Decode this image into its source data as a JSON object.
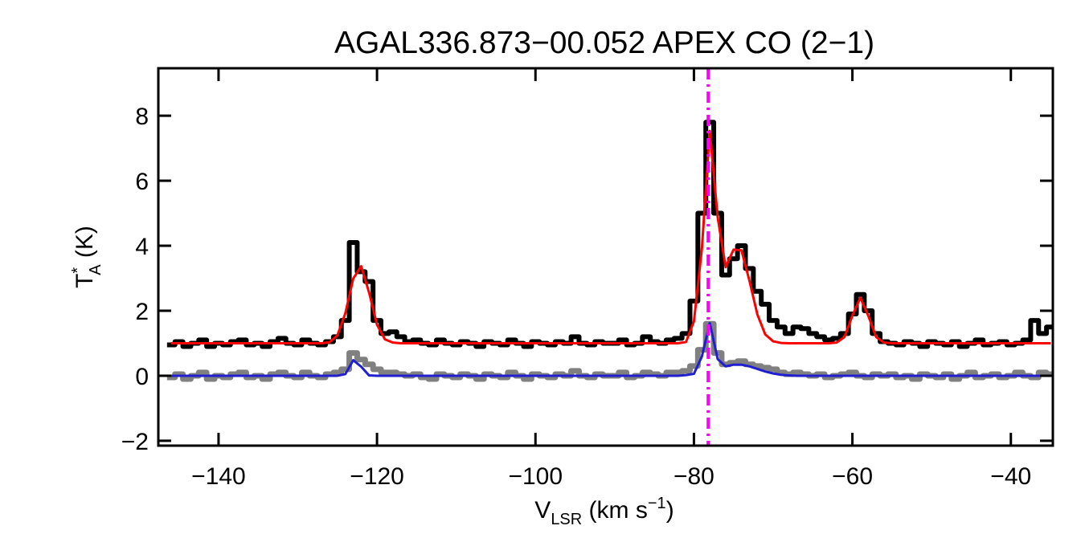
{
  "chart_data": {
    "type": "line",
    "title": "AGAL336.873−00.052  APEX CO (2−1)",
    "x_label": {
      "main": "V",
      "sub": "LSR",
      "unit": " (km s",
      "sup": "−1",
      "close": ")"
    },
    "y_label": {
      "main": "T",
      "sup": "*",
      "sub": "A",
      "unit": " (K)"
    },
    "x": [
      -146,
      -145,
      -144,
      -143,
      -142,
      -141,
      -140,
      -139,
      -138,
      -137,
      -136,
      -135,
      -134,
      -133,
      -132,
      -131,
      -130,
      -129,
      -128,
      -127,
      -126,
      -125,
      -124,
      -123,
      -122,
      -121,
      -120,
      -119,
      -118,
      -117,
      -116,
      -115,
      -114,
      -113,
      -112,
      -111,
      -110,
      -109,
      -108,
      -107,
      -106,
      -105,
      -104,
      -103,
      -102,
      -101,
      -100,
      -99,
      -98,
      -97,
      -96,
      -95,
      -94,
      -93,
      -92,
      -91,
      -90,
      -89,
      -88,
      -87,
      -86,
      -85,
      -84,
      -83,
      -82,
      -81,
      -80,
      -79,
      -78,
      -77,
      -76,
      -75,
      -74,
      -73,
      -72,
      -71,
      -70,
      -69,
      -68,
      -67,
      -66,
      -65,
      -64,
      -63,
      -62,
      -61,
      -60,
      -59,
      -58,
      -57,
      -56,
      -55,
      -54,
      -53,
      -52,
      -51,
      -50,
      -49,
      -48,
      -47,
      -46,
      -45,
      -44,
      -43,
      -42,
      -41,
      -40,
      -39,
      -38,
      -37,
      -36,
      -35
    ],
    "series": [
      {
        "color": "#808080",
        "style": "step",
        "width": 7,
        "values": [
          -0.05,
          0.05,
          -0.1,
          0.0,
          0.1,
          -0.1,
          0.0,
          -0.05,
          0.05,
          0.1,
          -0.05,
          0.0,
          -0.1,
          0.05,
          0.1,
          0.0,
          -0.05,
          0.1,
          0.0,
          -0.05,
          0.05,
          0.1,
          0.2,
          0.7,
          0.5,
          0.35,
          0.2,
          0.1,
          0.1,
          0.05,
          0.0,
          0.05,
          -0.05,
          -0.1,
          0.05,
          0.0,
          -0.05,
          0.05,
          0.0,
          -0.1,
          0.05,
          0.0,
          -0.05,
          0.1,
          0.0,
          -0.1,
          0.05,
          0.0,
          -0.05,
          0.05,
          0.0,
          0.15,
          0.0,
          -0.05,
          0.05,
          0.0,
          0.0,
          0.1,
          -0.05,
          0.0,
          0.1,
          0.05,
          0.0,
          0.1,
          0.1,
          0.15,
          0.3,
          0.8,
          1.6,
          0.7,
          0.35,
          0.4,
          0.45,
          0.35,
          0.3,
          0.25,
          0.2,
          0.1,
          0.05,
          0.1,
          0.05,
          0.0,
          0.05,
          -0.05,
          0.0,
          0.05,
          0.1,
          0.0,
          -0.05,
          0.05,
          0.0,
          0.05,
          -0.05,
          0.0,
          -0.1,
          0.05,
          0.0,
          -0.05,
          0.05,
          -0.1,
          0.0,
          0.1,
          -0.05,
          0.0,
          0.05,
          -0.05,
          0.0,
          0.1,
          0.0,
          -0.05,
          0.1,
          0.05
        ]
      },
      {
        "color": "#000000",
        "style": "step",
        "width": 6,
        "values": [
          0.95,
          1.05,
          0.9,
          1.0,
          1.1,
          0.9,
          1.0,
          0.95,
          1.05,
          1.1,
          0.95,
          1.0,
          0.9,
          1.05,
          1.15,
          1.0,
          0.95,
          1.1,
          1.0,
          0.95,
          1.05,
          1.2,
          1.7,
          4.1,
          3.2,
          2.9,
          1.7,
          1.3,
          1.35,
          1.2,
          1.05,
          1.1,
          1.0,
          0.95,
          1.1,
          1.0,
          0.95,
          1.05,
          1.0,
          0.9,
          1.05,
          1.0,
          0.95,
          1.1,
          1.0,
          0.9,
          1.05,
          1.0,
          0.95,
          1.05,
          1.0,
          1.2,
          1.0,
          0.95,
          1.05,
          1.0,
          1.0,
          1.1,
          0.95,
          1.0,
          1.2,
          1.05,
          1.0,
          1.1,
          1.15,
          1.3,
          2.3,
          5.0,
          7.8,
          5.0,
          3.1,
          3.6,
          4.0,
          3.3,
          2.6,
          2.2,
          1.7,
          1.5,
          1.3,
          1.5,
          1.45,
          1.3,
          1.2,
          1.1,
          1.15,
          1.3,
          1.9,
          2.5,
          2.0,
          1.3,
          1.05,
          1.0,
          0.95,
          1.05,
          1.0,
          0.9,
          1.05,
          1.0,
          0.95,
          1.05,
          0.9,
          1.0,
          1.1,
          0.95,
          1.0,
          1.05,
          0.95,
          1.0,
          1.1,
          1.7,
          1.3,
          1.5
        ]
      },
      {
        "color": "#ff0000",
        "style": "smooth",
        "width": 3,
        "values": [
          1.0,
          1.0,
          1.0,
          1.0,
          1.0,
          1.0,
          1.0,
          1.0,
          1.0,
          1.0,
          1.0,
          1.0,
          1.0,
          1.0,
          1.0,
          1.0,
          1.0,
          1.0,
          1.0,
          1.0,
          1.03,
          1.24,
          1.92,
          2.99,
          3.37,
          2.56,
          1.57,
          1.12,
          1.02,
          1.0,
          1.0,
          1.0,
          1.0,
          1.0,
          1.0,
          1.0,
          1.0,
          1.0,
          1.0,
          1.0,
          1.0,
          1.0,
          1.0,
          1.0,
          1.0,
          1.0,
          1.0,
          1.0,
          1.0,
          1.0,
          1.0,
          1.0,
          1.0,
          1.0,
          1.0,
          1.0,
          1.0,
          1.0,
          1.0,
          1.0,
          1.0,
          1.0,
          1.0,
          1.0,
          1.0,
          1.04,
          1.67,
          3.9,
          7.53,
          4.87,
          3.34,
          3.88,
          3.86,
          2.93,
          1.89,
          1.27,
          1.06,
          1.01,
          1.0,
          1.0,
          1.0,
          1.0,
          1.0,
          1.0,
          1.02,
          1.19,
          1.85,
          2.4,
          1.85,
          1.19,
          1.02,
          1.0,
          1.0,
          1.0,
          1.0,
          1.0,
          1.0,
          1.0,
          1.0,
          1.0,
          1.0,
          1.0,
          1.0,
          1.0,
          1.0,
          1.0,
          1.0,
          1.0,
          1.0,
          1.0,
          1.0,
          1.0
        ]
      },
      {
        "color": "#1f1fd0",
        "style": "smooth",
        "width": 3,
        "values": [
          0,
          0,
          0,
          0,
          0,
          0,
          0,
          0,
          0,
          0,
          0,
          0,
          0,
          0,
          0,
          0,
          0,
          0,
          0,
          0,
          0,
          0,
          0.05,
          0.48,
          0.28,
          0.01,
          0,
          0,
          0,
          0,
          0,
          0,
          0,
          0,
          0,
          0,
          0,
          0,
          0,
          0,
          0,
          0,
          0,
          0,
          0,
          0,
          0,
          0,
          0,
          0,
          0,
          0,
          0,
          0,
          0,
          0,
          0,
          0,
          0,
          0,
          0,
          0,
          0,
          0,
          0,
          0.02,
          0.06,
          0.59,
          1.62,
          0.51,
          0.29,
          0.34,
          0.34,
          0.29,
          0.21,
          0.13,
          0.07,
          0.03,
          0.01,
          0,
          0,
          0,
          0,
          0,
          0,
          0,
          0,
          0,
          0,
          0,
          0,
          0,
          0,
          0,
          0,
          0,
          0,
          0,
          0,
          0,
          0,
          0,
          0,
          0,
          0,
          0,
          0,
          0,
          0,
          0,
          0,
          0
        ]
      }
    ],
    "vline": {
      "value": -78.2,
      "color": "#ff00ff"
    },
    "xlim": [
      -147.6,
      -34.7
    ],
    "ylim": [
      -2.15,
      9.46
    ],
    "xticks": [
      {
        "value": -140,
        "label": "−140"
      },
      {
        "value": -120,
        "label": "−120"
      },
      {
        "value": -100,
        "label": "−100"
      },
      {
        "value": -80,
        "label": "−80"
      },
      {
        "value": -60,
        "label": "−60"
      },
      {
        "value": -40,
        "label": "−40"
      }
    ],
    "yticks": [
      {
        "value": -2,
        "label": "−2"
      },
      0,
      2,
      4,
      6,
      8
    ]
  }
}
